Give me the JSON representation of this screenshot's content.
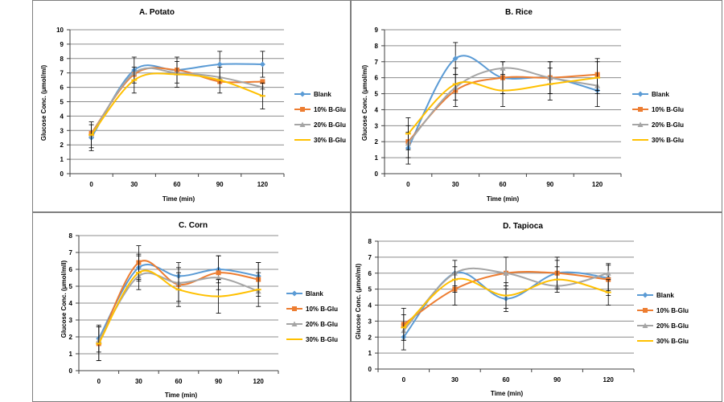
{
  "colors": {
    "blank": "#5b9bd5",
    "b10": "#ed7d31",
    "b20": "#a5a5a5",
    "b30": "#ffc000"
  },
  "chart_data": [
    {
      "type": "line",
      "title": "A. Potato",
      "xlabel": "Time (min)",
      "ylabel": "Glucose Conc. (μmol/ml)",
      "x": [
        0,
        30,
        60,
        90,
        120
      ],
      "xticks": [
        "0",
        "30",
        "60",
        "90",
        "120"
      ],
      "ylim": [
        0,
        10
      ],
      "yticks": [
        0,
        1,
        2,
        3,
        4,
        5,
        6,
        7,
        8,
        9,
        10
      ],
      "grid": true,
      "legend_position": "right",
      "series": [
        {
          "name": "Blank",
          "values": [
            2.5,
            7.2,
            7.2,
            7.6,
            7.6
          ],
          "err": [
            0.9,
            0.9,
            0.9,
            0.9,
            0.9
          ]
        },
        {
          "name": "10% B-Glu",
          "values": [
            2.8,
            6.9,
            7.2,
            6.4,
            6.4
          ]
        },
        {
          "name": "20% B-Glu",
          "values": [
            2.7,
            7.0,
            7.0,
            6.7,
            6.0
          ]
        },
        {
          "name": "30% B-Glu",
          "values": [
            2.7,
            6.5,
            6.9,
            6.5,
            5.4
          ],
          "err": [
            0.9,
            0.9,
            0.9,
            0.9,
            0.9
          ]
        }
      ]
    },
    {
      "type": "line",
      "title": "B. Rice",
      "xlabel": "Time (min)",
      "ylabel": "Glucose Conc. (μmol/ml)",
      "x": [
        0,
        30,
        60,
        90,
        120
      ],
      "xticks": [
        "0",
        "30",
        "60",
        "90",
        "120"
      ],
      "ylim": [
        0,
        9
      ],
      "yticks": [
        0,
        1,
        2,
        3,
        4,
        5,
        6,
        7,
        8,
        9
      ],
      "grid": true,
      "legend_position": "right",
      "series": [
        {
          "name": "Blank",
          "values": [
            1.6,
            7.2,
            6.0,
            6.0,
            5.2
          ],
          "err": [
            1.0,
            1.0,
            1.0,
            1.0,
            1.0
          ]
        },
        {
          "name": "10% B-Glu",
          "values": [
            2.0,
            5.2,
            6.0,
            6.0,
            6.2
          ],
          "err": [
            1.0,
            1.0,
            1.0,
            1.0,
            1.0
          ]
        },
        {
          "name": "20% B-Glu",
          "values": [
            1.9,
            5.4,
            6.6,
            6.0,
            5.5
          ]
        },
        {
          "name": "30% B-Glu",
          "values": [
            2.5,
            5.6,
            5.2,
            5.6,
            6.0
          ],
          "err": [
            1.0,
            1.0,
            1.0,
            1.0,
            1.0
          ]
        }
      ]
    },
    {
      "type": "line",
      "title": "C. Corn",
      "xlabel": "Time (min)",
      "ylabel": "Glucose Conc. (μmol/mll)",
      "x": [
        0,
        30,
        60,
        90,
        120
      ],
      "xticks": [
        "0",
        "30",
        "60",
        "90",
        "120"
      ],
      "ylim": [
        0,
        8
      ],
      "yticks": [
        0,
        1,
        2,
        3,
        4,
        5,
        6,
        7,
        8
      ],
      "grid": true,
      "legend_position": "right",
      "series": [
        {
          "name": "Blank",
          "values": [
            1.9,
            6.1,
            5.6,
            6.0,
            5.6
          ],
          "err": [
            0.8,
            0.8,
            0.8,
            0.8,
            0.8
          ]
        },
        {
          "name": "10% B-Glu",
          "values": [
            1.6,
            6.4,
            5.1,
            5.8,
            5.4
          ],
          "err": [
            1.0,
            1.0,
            1.0,
            1.0,
            1.0
          ]
        },
        {
          "name": "20% B-Glu",
          "values": [
            1.8,
            5.6,
            5.2,
            5.5,
            4.7
          ]
        },
        {
          "name": "30% B-Glu",
          "values": [
            1.6,
            5.8,
            4.8,
            4.4,
            4.8
          ],
          "err": [
            1.0,
            1.0,
            1.0,
            1.0,
            1.0
          ]
        }
      ]
    },
    {
      "type": "line",
      "title": "D. Tapioca",
      "xlabel": "Time (min)",
      "ylabel": "Glucose Conc. (μmol/ml)",
      "x": [
        0,
        30,
        60,
        90,
        120
      ],
      "xticks": [
        "0",
        "30",
        "60",
        "90",
        "120"
      ],
      "ylim": [
        0,
        8
      ],
      "yticks": [
        0,
        1,
        2,
        3,
        4,
        5,
        6,
        7,
        8
      ],
      "grid": true,
      "legend_position": "right",
      "series": [
        {
          "name": "Blank",
          "values": [
            2.0,
            6.0,
            4.4,
            6.0,
            5.7
          ],
          "err": [
            0.8,
            0.8,
            0.8,
            0.8,
            0.8
          ]
        },
        {
          "name": "10% B-Glu",
          "values": [
            2.8,
            5.0,
            6.0,
            6.0,
            5.6
          ],
          "err": [
            1.0,
            1.0,
            1.0,
            1.0,
            1.0
          ]
        },
        {
          "name": "20% B-Glu",
          "values": [
            2.4,
            6.0,
            6.0,
            5.2,
            6.0
          ]
        },
        {
          "name": "30% B-Glu",
          "values": [
            2.6,
            5.6,
            4.6,
            5.6,
            4.8
          ],
          "err": [
            0.8,
            0.8,
            0.8,
            0.8,
            0.8
          ]
        }
      ]
    }
  ]
}
